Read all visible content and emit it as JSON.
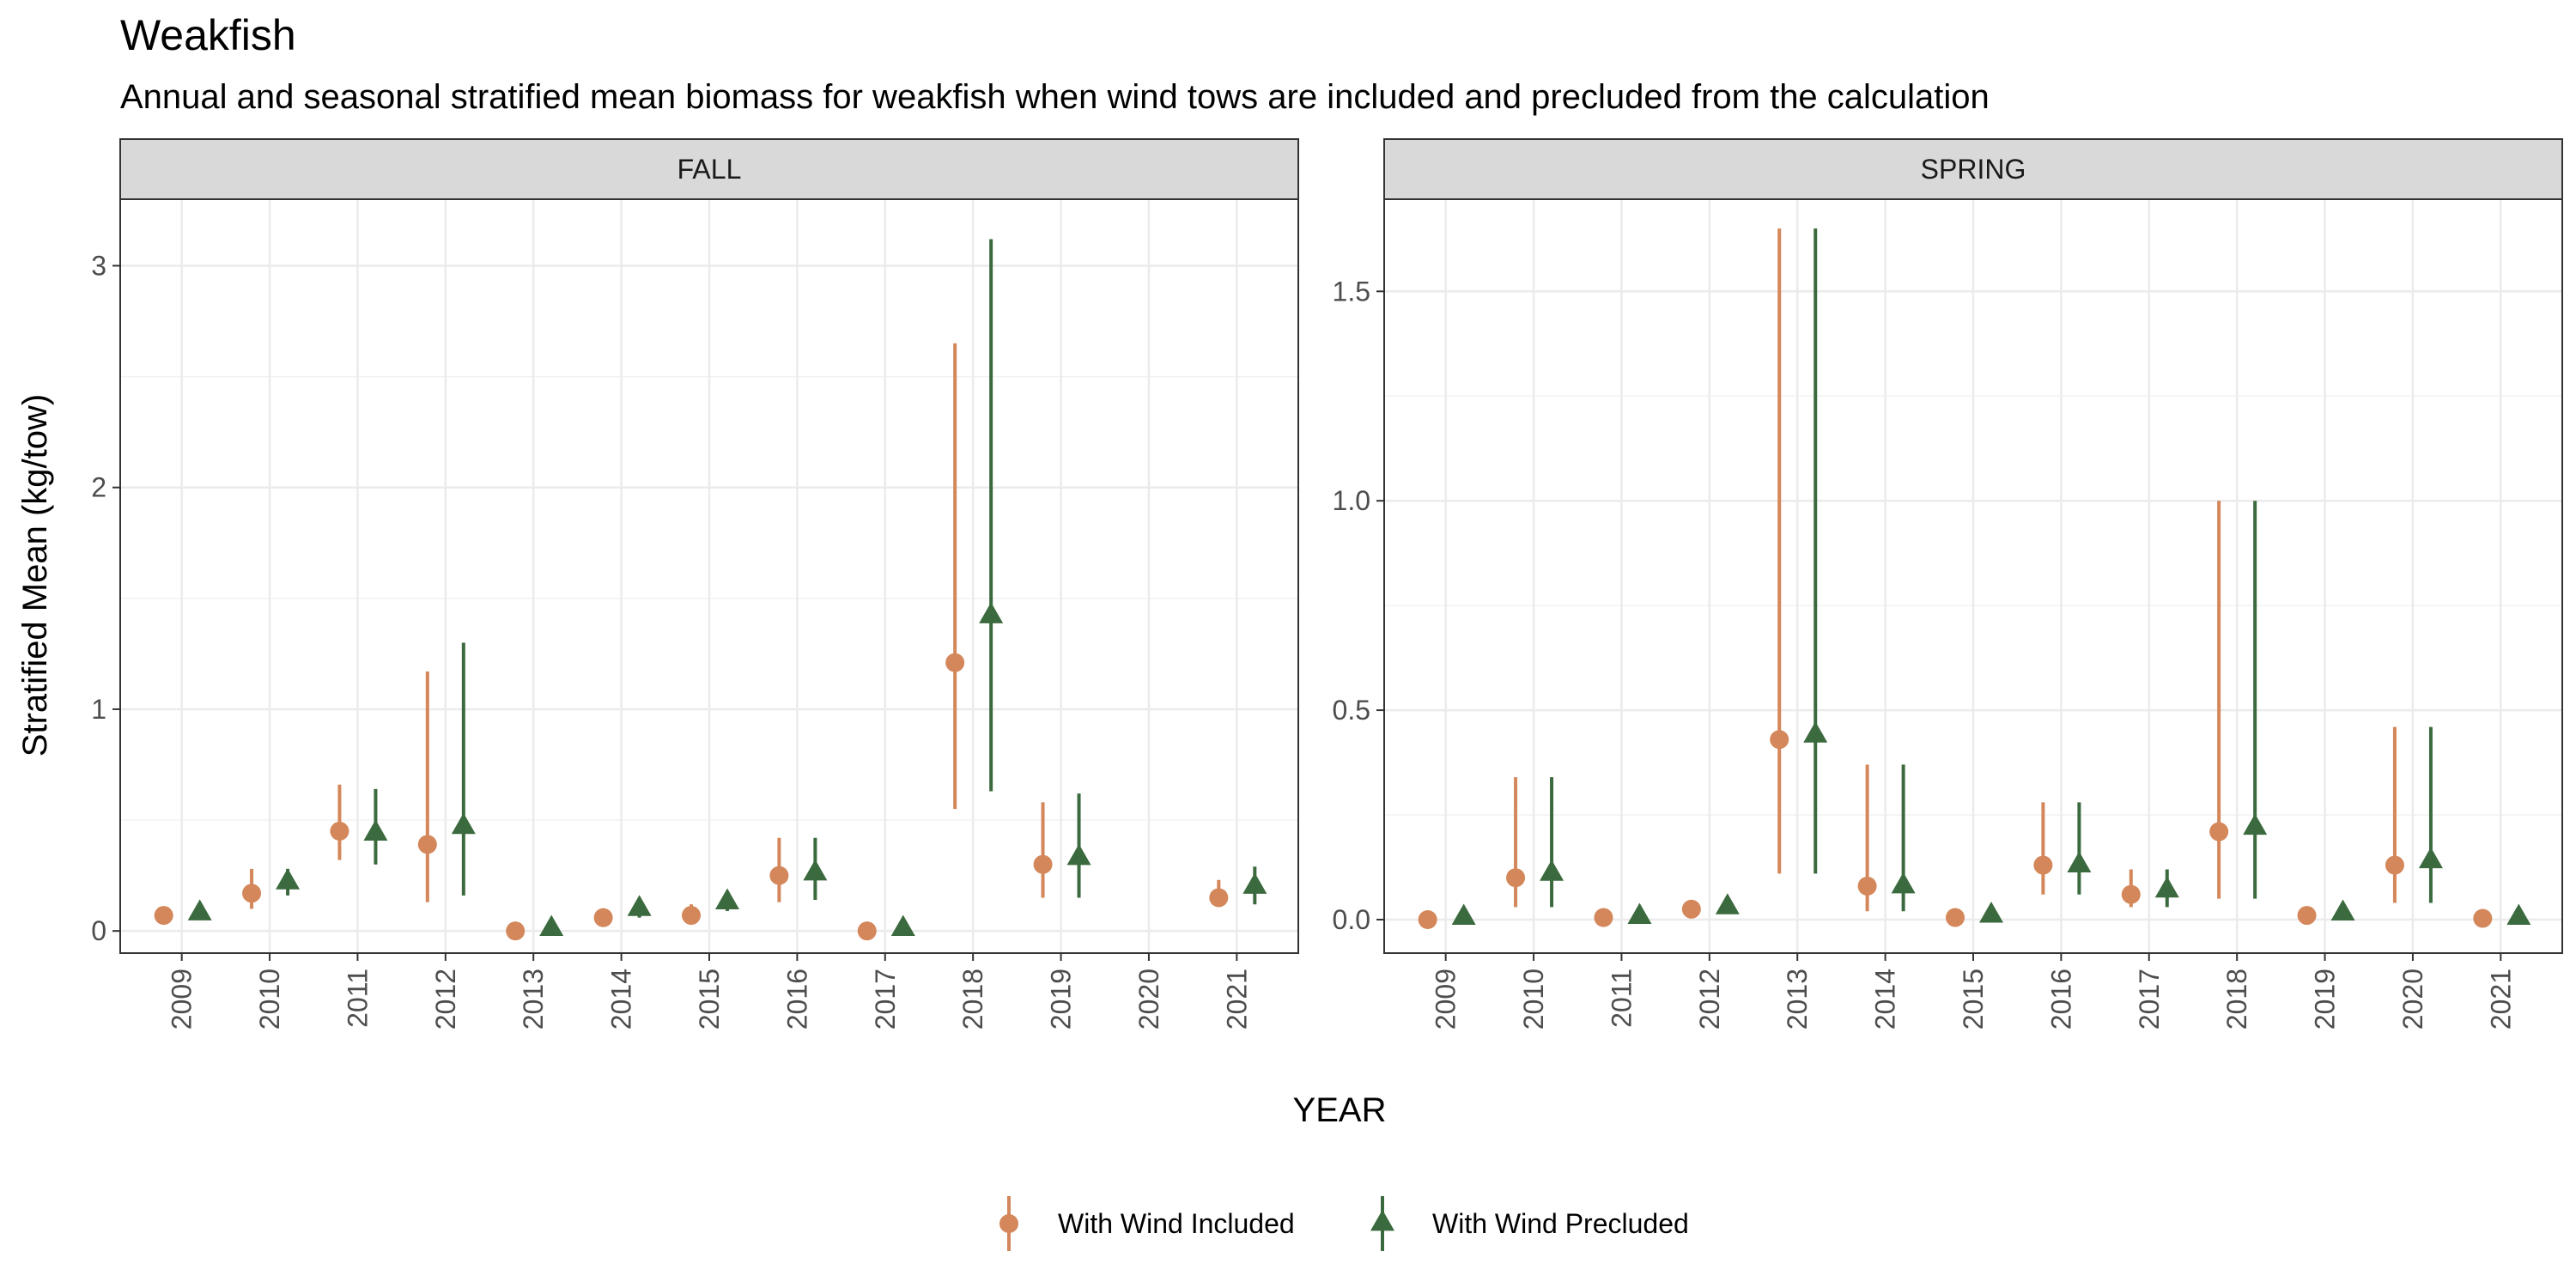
{
  "chart_data": {
    "type": "scatter",
    "title": "Weakfish",
    "subtitle": "Annual and seasonal stratified mean biomass for weakfish when wind tows are included and precluded from the calculation",
    "xlabel": "YEAR",
    "ylabel": "Stratified Mean (kg/tow)",
    "categories": [
      "2009",
      "2010",
      "2011",
      "2012",
      "2013",
      "2014",
      "2015",
      "2016",
      "2017",
      "2018",
      "2019",
      "2020",
      "2021"
    ],
    "grid": true,
    "legend_position": "bottom",
    "series_meta": [
      {
        "name": "With Wind Included",
        "color": "#D4875A",
        "marker": "circle"
      },
      {
        "name": "With Wind Precluded",
        "color": "#3B6A3E",
        "marker": "triangle"
      }
    ],
    "panels": [
      {
        "strip": "FALL",
        "ylim": [
          -0.1,
          3.3
        ],
        "yticks": [
          0,
          1,
          2,
          3
        ],
        "ytick_labels": [
          "0",
          "1",
          "2",
          "3"
        ],
        "series": [
          {
            "name": "With Wind Included",
            "values": [
              0.07,
              0.17,
              0.45,
              0.39,
              0.0,
              0.06,
              0.07,
              0.25,
              0.0,
              1.21,
              0.3,
              null,
              0.15
            ],
            "lower": [
              0.05,
              0.1,
              0.32,
              0.13,
              0.0,
              0.02,
              0.04,
              0.13,
              0.0,
              0.55,
              0.15,
              null,
              0.11
            ],
            "upper": [
              0.09,
              0.28,
              0.66,
              1.17,
              0.02,
              0.1,
              0.12,
              0.42,
              0.01,
              2.65,
              0.58,
              null,
              0.23
            ]
          },
          {
            "name": "With Wind Precluded",
            "values": [
              0.08,
              0.22,
              0.44,
              0.47,
              0.01,
              0.1,
              0.13,
              0.26,
              0.01,
              1.42,
              0.33,
              null,
              0.2
            ],
            "lower": [
              0.06,
              0.16,
              0.3,
              0.16,
              0.0,
              0.06,
              0.09,
              0.14,
              0.0,
              0.63,
              0.15,
              null,
              0.12
            ],
            "upper": [
              0.1,
              0.28,
              0.64,
              1.3,
              0.02,
              0.14,
              0.18,
              0.42,
              0.02,
              3.12,
              0.62,
              null,
              0.29
            ]
          }
        ]
      },
      {
        "strip": "SPRING",
        "ylim": [
          -0.08,
          1.72
        ],
        "yticks": [
          0.0,
          0.5,
          1.0,
          1.5
        ],
        "ytick_labels": [
          "0.0",
          "0.5",
          "1.0",
          "1.5"
        ],
        "series": [
          {
            "name": "With Wind Included",
            "values": [
              0.0,
              0.1,
              0.005,
              0.025,
              0.43,
              0.08,
              0.005,
              0.13,
              0.06,
              0.21,
              0.01,
              0.13,
              0.003
            ],
            "lower": [
              0.0,
              0.03,
              0.0,
              0.015,
              0.11,
              0.02,
              0.0,
              0.06,
              0.03,
              0.05,
              0.0,
              0.04,
              0.0
            ],
            "upper": [
              0.005,
              0.34,
              0.01,
              0.04,
              1.65,
              0.37,
              0.01,
              0.28,
              0.12,
              1.0,
              0.02,
              0.46,
              0.006
            ]
          },
          {
            "name": "With Wind Precluded",
            "values": [
              0.005,
              0.11,
              0.007,
              0.03,
              0.44,
              0.08,
              0.01,
              0.13,
              0.07,
              0.22,
              0.015,
              0.14,
              0.005
            ],
            "lower": [
              0.0,
              0.03,
              0.0,
              0.015,
              0.11,
              0.02,
              0.0,
              0.06,
              0.03,
              0.05,
              0.0,
              0.04,
              0.0
            ],
            "upper": [
              0.01,
              0.34,
              0.015,
              0.045,
              1.65,
              0.37,
              0.015,
              0.28,
              0.12,
              1.0,
              0.03,
              0.46,
              0.01
            ]
          }
        ]
      }
    ]
  }
}
